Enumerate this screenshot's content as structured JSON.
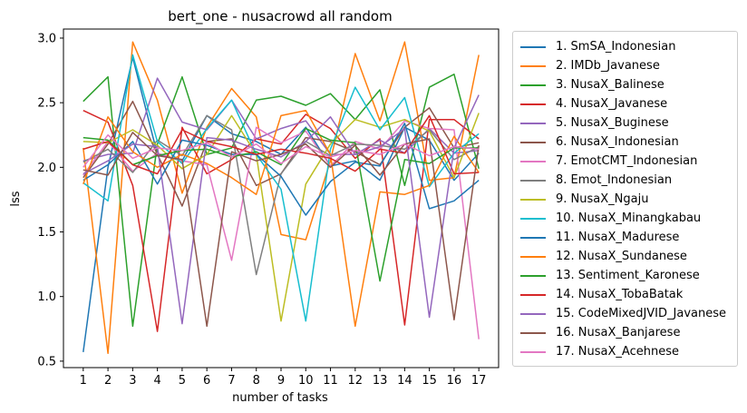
{
  "chart_data": {
    "type": "line",
    "title": "bert_one - nusacrowd all random",
    "xlabel": "number of tasks",
    "ylabel": "lss",
    "x": [
      1,
      2,
      3,
      4,
      5,
      6,
      7,
      8,
      9,
      10,
      11,
      12,
      13,
      14,
      15,
      16,
      17
    ],
    "xticks": [
      "1",
      "2",
      "3",
      "4",
      "5",
      "6",
      "7",
      "8",
      "9",
      "10",
      "11",
      "12",
      "13",
      "14",
      "15",
      "16",
      "17"
    ],
    "yticks": [
      "0.5",
      "1.0",
      "1.5",
      "2.0",
      "2.5",
      "3.0"
    ],
    "xlim": [
      0.2,
      17.8
    ],
    "ylim": [
      0.45,
      3.07
    ],
    "grid": false,
    "legend_position": "outside right",
    "series": [
      {
        "name": "1. SmSA_Indonesian",
        "color": "#1f77b4",
        "values": [
          0.57,
          2.0,
          2.85,
          2.1,
          2.05,
          2.4,
          2.26,
          2.2,
          2.1,
          2.31,
          2.01,
          2.05,
          1.9,
          2.31,
          2.21,
          1.9,
          2.11
        ]
      },
      {
        "name": "2. IMDb_Javanese",
        "color": "#ff7f0e",
        "values": [
          2.15,
          0.56,
          2.97,
          2.52,
          1.8,
          2.31,
          2.61,
          2.39,
          1.48,
          1.44,
          2.05,
          2.88,
          2.36,
          2.97,
          1.9,
          1.92,
          2.87
        ]
      },
      {
        "name": "3. NusaX_Balinese",
        "color": "#2ca02c",
        "values": [
          2.51,
          2.7,
          0.77,
          2.18,
          2.7,
          2.1,
          2.15,
          2.52,
          2.55,
          2.48,
          2.57,
          2.37,
          2.6,
          1.86,
          2.62,
          2.72,
          1.99
        ]
      },
      {
        "name": "4. NusaX_Javanese",
        "color": "#d62728",
        "values": [
          2.44,
          2.35,
          1.86,
          0.73,
          2.31,
          1.95,
          2.06,
          2.22,
          2.18,
          2.41,
          2.3,
          2.07,
          2.22,
          0.78,
          2.37,
          2.37,
          2.22
        ]
      },
      {
        "name": "5. NusaX_Buginese",
        "color": "#9467bd",
        "values": [
          2.05,
          2.1,
          2.11,
          2.69,
          2.35,
          2.29,
          2.52,
          2.22,
          2.3,
          2.36,
          2.1,
          2.1,
          2.21,
          2.11,
          2.3,
          2.11,
          2.13
        ]
      },
      {
        "name": "6. NusaX_Indonesian",
        "color": "#8c564b",
        "values": [
          1.92,
          2.18,
          2.51,
          2.1,
          1.7,
          2.2,
          2.22,
          1.86,
          1.95,
          2.23,
          2.2,
          2.12,
          2.02,
          2.31,
          2.46,
          2.15,
          2.19
        ]
      },
      {
        "name": "7. EmotCMT_Indonesian",
        "color": "#e377c2",
        "values": [
          1.94,
          2.2,
          1.97,
          2.11,
          2.05,
          2.02,
          1.28,
          2.31,
          2.19,
          2.28,
          2.01,
          2.2,
          2.14,
          2.36,
          2.3,
          2.29,
          0.67
        ]
      },
      {
        "name": "8. Emot_Indonesian",
        "color": "#7f7f7f",
        "values": [
          2.04,
          2.14,
          1.96,
          2.21,
          2.09,
          2.4,
          2.29,
          1.17,
          1.95,
          2.2,
          2.09,
          2.18,
          2.17,
          2.14,
          2.29,
          2.06,
          2.16
        ]
      },
      {
        "name": "9. NusaX_Ngaju",
        "color": "#bcbd22",
        "values": [
          2.2,
          2.19,
          2.29,
          2.17,
          1.99,
          2.1,
          2.4,
          2.1,
          0.81,
          1.87,
          2.18,
          2.37,
          2.31,
          2.37,
          2.28,
          1.92,
          2.42
        ]
      },
      {
        "name": "10. NusaX_Minangkabau",
        "color": "#17becf",
        "values": [
          1.88,
          1.74,
          2.87,
          2.2,
          2.03,
          2.3,
          2.52,
          2.1,
          1.83,
          0.81,
          2.14,
          2.62,
          2.29,
          2.54,
          1.85,
          2.11,
          2.26
        ]
      },
      {
        "name": "11. NusaX_Madurese",
        "color": "#1f77b4",
        "values": [
          1.9,
          2.02,
          2.2,
          1.87,
          2.21,
          2.17,
          2.1,
          2.1,
          1.93,
          1.63,
          1.89,
          2.04,
          2.01,
          2.34,
          1.68,
          1.74,
          1.9
        ]
      },
      {
        "name": "12. NusaX_Sundanese",
        "color": "#ff7f0e",
        "values": [
          1.87,
          2.39,
          2.12,
          2.0,
          2.1,
          2.03,
          1.92,
          1.79,
          2.4,
          2.44,
          2.1,
          0.77,
          1.81,
          1.79,
          1.86,
          2.24,
          1.96
        ]
      },
      {
        "name": "13. Sentiment_Karonese",
        "color": "#2ca02c",
        "values": [
          2.23,
          2.21,
          2.02,
          2.09,
          2.13,
          2.14,
          2.08,
          2.12,
          2.02,
          2.3,
          2.21,
          2.19,
          1.12,
          2.06,
          2.03,
          2.15,
          2.15
        ]
      },
      {
        "name": "14. NusaX_TobaBatak",
        "color": "#d62728",
        "values": [
          2.14,
          2.2,
          2.02,
          1.95,
          2.29,
          2.2,
          2.16,
          2.1,
          2.14,
          2.11,
          2.07,
          1.97,
          2.14,
          2.11,
          2.4,
          1.95,
          1.96
        ]
      },
      {
        "name": "15. CodeMixedJVID_Javanese",
        "color": "#9467bd",
        "values": [
          1.95,
          2.05,
          2.18,
          2.16,
          0.79,
          2.23,
          2.21,
          2.14,
          2.08,
          2.2,
          2.39,
          2.1,
          2.16,
          2.3,
          0.84,
          2.15,
          2.56
        ]
      },
      {
        "name": "16. NusaX_Banjarese",
        "color": "#8c564b",
        "values": [
          1.98,
          1.94,
          2.27,
          2.09,
          2.06,
          0.77,
          2.12,
          2.05,
          2.1,
          2.18,
          2.0,
          2.17,
          1.94,
          2.18,
          2.22,
          0.82,
          2.17
        ]
      },
      {
        "name": "17. NusaX_Acehnese",
        "color": "#e377c2",
        "values": [
          2.0,
          2.25,
          2.07,
          2.15,
          2.13,
          2.19,
          2.08,
          2.18,
          2.03,
          2.16,
          2.08,
          2.13,
          2.1,
          2.18,
          2.09,
          2.16,
          2.14
        ]
      }
    ]
  }
}
